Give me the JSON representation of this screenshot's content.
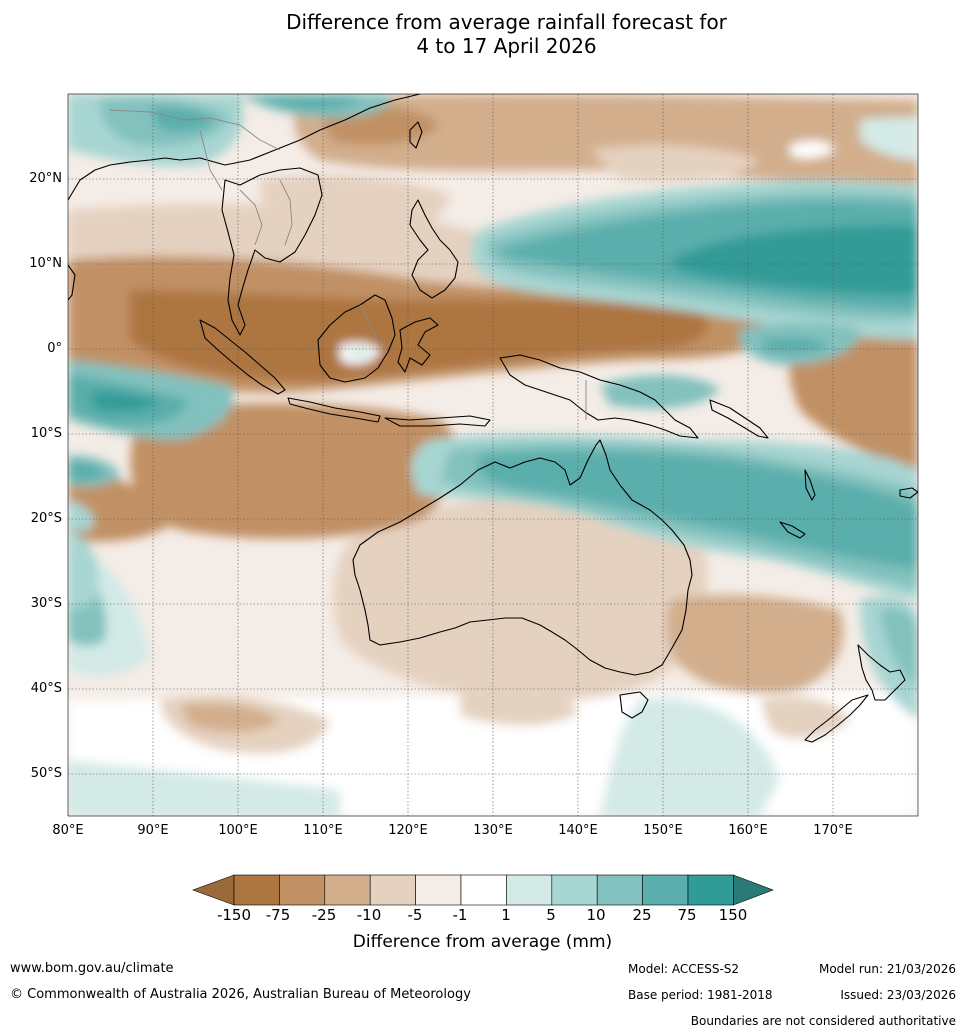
{
  "title": {
    "line1": "Difference from average rainfall forecast for",
    "line2": "4 to 17 April 2026"
  },
  "map": {
    "region": "Australia, Indonesia, western Pacific",
    "lat_range": [
      -55,
      30
    ],
    "lon_range": [
      80,
      180
    ],
    "lat_labels": [
      "20°N",
      "10°N",
      "0°",
      "10°S",
      "20°S",
      "30°S",
      "40°S",
      "50°S"
    ],
    "lon_labels": [
      "80°E",
      "90°E",
      "100°E",
      "110°E",
      "120°E",
      "130°E",
      "140°E",
      "150°E",
      "160°E",
      "170°E"
    ]
  },
  "colorbar": {
    "title": "Difference from average (mm)",
    "ticks": [
      "-150",
      "-75",
      "-25",
      "-10",
      "-5",
      "-1",
      "1",
      "5",
      "10",
      "25",
      "75",
      "150"
    ],
    "colors": [
      "#9b6a3a",
      "#ad7540",
      "#c19165",
      "#d2ae8c",
      "#e5d1c0",
      "#f4ece6",
      "#ffffff",
      "#d3eae7",
      "#a7d5d2",
      "#82c1be",
      "#5aaeab",
      "#319b97",
      "#2a7a77"
    ]
  },
  "footer": {
    "url": "www.bom.gov.au/climate",
    "copyright": "© Commonwealth of Australia 2026, Australian Bureau of Meteorology",
    "model": "Model: ACCESS-S2",
    "base_period": "Base period: 1981-2018",
    "model_run": "Model run: 21/03/2026",
    "issued": "Issued: 23/03/2026",
    "disclaimer": "Boundaries are not considered authoritative"
  }
}
